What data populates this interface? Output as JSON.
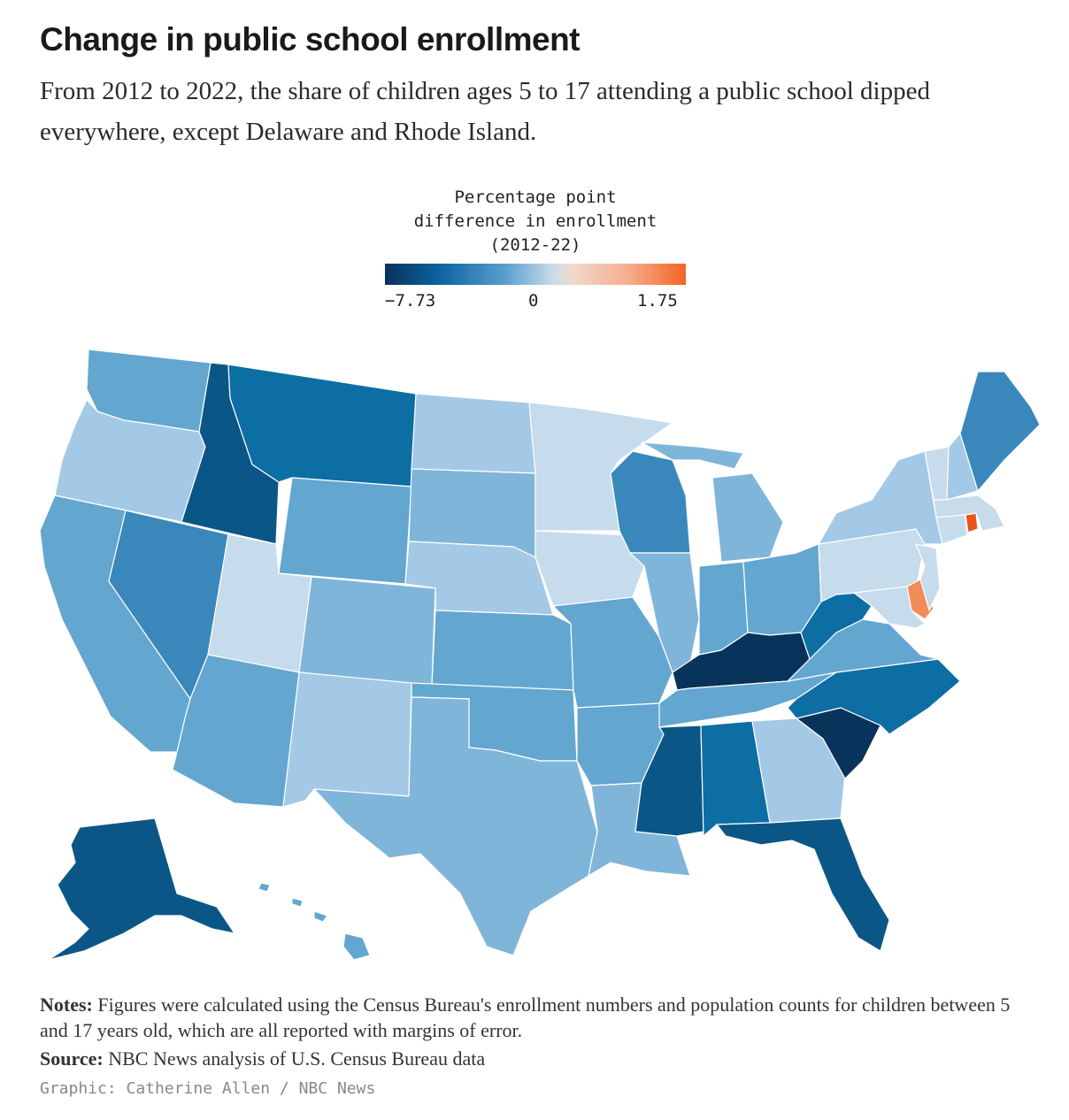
{
  "header": {
    "title": "Change in public school enrollment",
    "subtitle": "From 2012 to 2022, the share of children ages 5 to 17 attending a public school dipped everywhere, except Delaware and Rhode Island."
  },
  "legend": {
    "title_line1": "Percentage point",
    "title_line2": "difference in enrollment",
    "title_line3": "(2012-22)",
    "min_label": "−7.73",
    "mid_label": "0",
    "max_label": "1.75",
    "colors": [
      "#08335a",
      "#0b63a0",
      "#5a9fd0",
      "#c9dcea",
      "#f1d9cc",
      "#f5b093",
      "#f26523"
    ]
  },
  "colors": {
    "darkest": "#08335a",
    "dark": "#0a5687",
    "darkblue": "#0c6ea3",
    "medblue": "#3a88bb",
    "blue": "#63a6d0",
    "lightblue": "#80b5da",
    "paleblue": "#a3c9e6",
    "palest": "#c6dbeb",
    "orange": "#f08c5a",
    "deeporange": "#e8541c"
  },
  "chart_data": {
    "type": "choropleth",
    "title": "Change in public school enrollment",
    "unit": "percentage point difference in enrollment (2012-22)",
    "scale": {
      "min": -7.73,
      "mid": 0,
      "max": 1.75
    },
    "positive_states": [
      "Delaware",
      "Rhode Island"
    ],
    "states": [
      {
        "code": "WA",
        "bin": "blue"
      },
      {
        "code": "OR",
        "bin": "paleblue"
      },
      {
        "code": "CA",
        "bin": "blue"
      },
      {
        "code": "ID",
        "bin": "dark"
      },
      {
        "code": "NV",
        "bin": "medblue"
      },
      {
        "code": "MT",
        "bin": "darkblue"
      },
      {
        "code": "WY",
        "bin": "blue"
      },
      {
        "code": "UT",
        "bin": "palest"
      },
      {
        "code": "AZ",
        "bin": "blue"
      },
      {
        "code": "CO",
        "bin": "lightblue"
      },
      {
        "code": "NM",
        "bin": "paleblue"
      },
      {
        "code": "ND",
        "bin": "paleblue"
      },
      {
        "code": "SD",
        "bin": "lightblue"
      },
      {
        "code": "NE",
        "bin": "paleblue"
      },
      {
        "code": "KS",
        "bin": "blue"
      },
      {
        "code": "OK",
        "bin": "blue"
      },
      {
        "code": "TX",
        "bin": "lightblue"
      },
      {
        "code": "MN",
        "bin": "palest"
      },
      {
        "code": "IA",
        "bin": "palest"
      },
      {
        "code": "MO",
        "bin": "blue"
      },
      {
        "code": "AR",
        "bin": "blue"
      },
      {
        "code": "LA",
        "bin": "lightblue"
      },
      {
        "code": "WI",
        "bin": "medblue"
      },
      {
        "code": "IL",
        "bin": "lightblue"
      },
      {
        "code": "MI",
        "bin": "lightblue"
      },
      {
        "code": "IN",
        "bin": "blue"
      },
      {
        "code": "OH",
        "bin": "blue"
      },
      {
        "code": "KY",
        "bin": "darkest"
      },
      {
        "code": "TN",
        "bin": "blue"
      },
      {
        "code": "MS",
        "bin": "dark"
      },
      {
        "code": "AL",
        "bin": "darkblue"
      },
      {
        "code": "GA",
        "bin": "paleblue"
      },
      {
        "code": "FL",
        "bin": "dark"
      },
      {
        "code": "SC",
        "bin": "darkest"
      },
      {
        "code": "NC",
        "bin": "darkblue"
      },
      {
        "code": "VA",
        "bin": "blue"
      },
      {
        "code": "WV",
        "bin": "darkblue"
      },
      {
        "code": "MD",
        "bin": "palest"
      },
      {
        "code": "DE",
        "bin": "orange"
      },
      {
        "code": "PA",
        "bin": "palest"
      },
      {
        "code": "NJ",
        "bin": "palest"
      },
      {
        "code": "NY",
        "bin": "paleblue"
      },
      {
        "code": "CT",
        "bin": "palest"
      },
      {
        "code": "RI",
        "bin": "deeporange"
      },
      {
        "code": "MA",
        "bin": "palest"
      },
      {
        "code": "VT",
        "bin": "palest"
      },
      {
        "code": "NH",
        "bin": "paleblue"
      },
      {
        "code": "ME",
        "bin": "medblue"
      },
      {
        "code": "AK",
        "bin": "dark"
      },
      {
        "code": "HI",
        "bin": "blue"
      }
    ]
  },
  "footer": {
    "notes_label": "Notes:",
    "notes_text": " Figures were calculated using the Census Bureau's enrollment numbers and population counts for children between 5 and 17 years old, which are all reported with margins of error.",
    "source_label": "Source:",
    "source_text": " NBC News analysis of U.S. Census Bureau data",
    "credit": "Graphic: Catherine Allen / NBC News"
  }
}
